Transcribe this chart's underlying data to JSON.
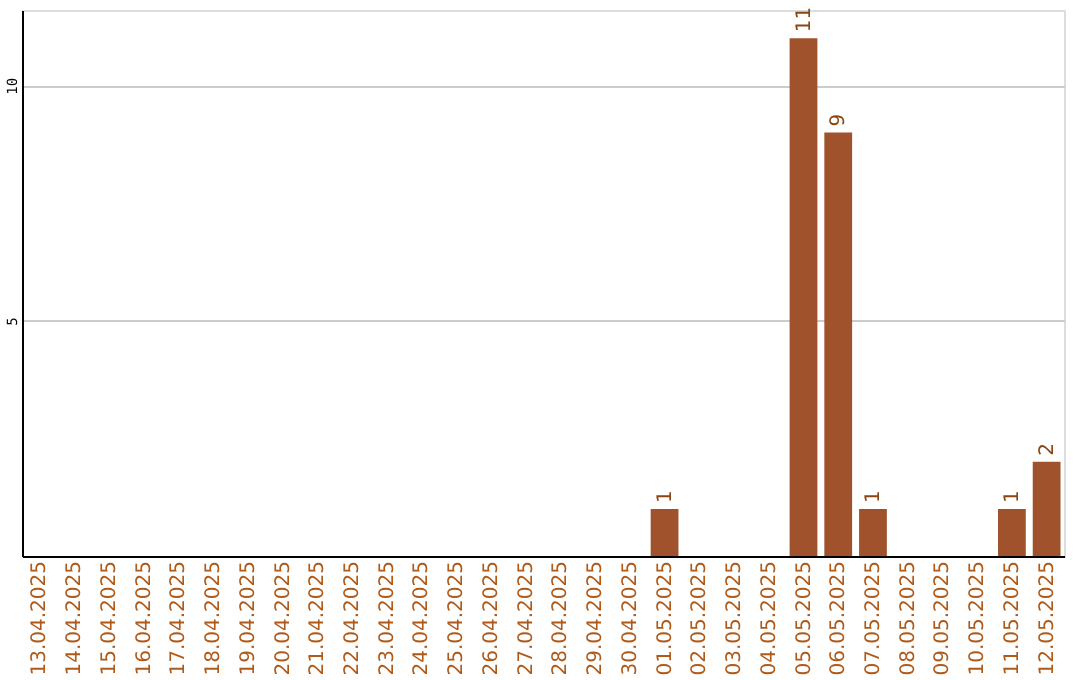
{
  "chart_data": {
    "type": "bar",
    "categories": [
      "13.04.2025",
      "14.04.2025",
      "15.04.2025",
      "16.04.2025",
      "17.04.2025",
      "18.04.2025",
      "19.04.2025",
      "20.04.2025",
      "21.04.2025",
      "22.04.2025",
      "23.04.2025",
      "24.04.2025",
      "25.04.2025",
      "26.04.2025",
      "27.04.2025",
      "28.04.2025",
      "29.04.2025",
      "30.04.2025",
      "01.05.2025",
      "02.05.2025",
      "03.05.2025",
      "04.05.2025",
      "05.05.2025",
      "06.05.2025",
      "07.05.2025",
      "08.05.2025",
      "09.05.2025",
      "10.05.2025",
      "11.05.2025",
      "12.05.2025"
    ],
    "values": [
      0,
      0,
      0,
      0,
      0,
      0,
      0,
      0,
      0,
      0,
      0,
      0,
      0,
      0,
      0,
      0,
      0,
      0,
      1,
      0,
      0,
      0,
      11,
      9,
      1,
      0,
      0,
      0,
      1,
      2
    ],
    "value_labels": [
      null,
      null,
      null,
      null,
      null,
      null,
      null,
      null,
      null,
      null,
      null,
      null,
      null,
      null,
      null,
      null,
      null,
      null,
      "1",
      null,
      null,
      null,
      "11",
      "9",
      "1",
      null,
      null,
      null,
      "1",
      "2"
    ],
    "color": "#a0522d",
    "ylim": [
      0,
      11.6
    ],
    "yticks": [
      5,
      10
    ],
    "grid": "y"
  }
}
